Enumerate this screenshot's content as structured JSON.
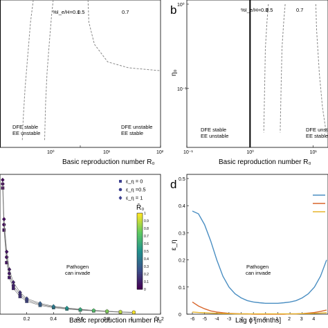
{
  "chart_data": [
    {
      "panel_label": "",
      "type": "line",
      "xscale": "log",
      "xlim": [
        1,
        100
      ],
      "x_tick_labels": [
        "10⁰",
        "10¹",
        "10²"
      ],
      "xlabel": "Basic reproduction number R₀",
      "threshold_line": {
        "x": 1
      },
      "contours": [
        {
          "label": "%I_e/H=0.1",
          "points": [
            [
              2.6,
              1.0
            ],
            [
              2.4,
              0.85
            ],
            [
              2.2,
              0.6
            ],
            [
              2.05,
              0.4
            ],
            [
              1.95,
              0.2
            ],
            [
              1.9,
              0.05
            ]
          ]
        },
        {
          "label": "0.5",
          "points": [
            [
              4.6,
              1.0
            ],
            [
              4.4,
              0.9
            ],
            [
              4.1,
              0.7
            ],
            [
              3.85,
              0.5
            ],
            [
              3.7,
              0.3
            ],
            [
              3.6,
              0.05
            ]
          ]
        },
        {
          "label": "0.7",
          "points": [
            [
              12.5,
              1.0
            ],
            [
              12.8,
              0.85
            ],
            [
              15,
              0.7
            ],
            [
              22,
              0.58
            ],
            [
              40,
              0.54
            ],
            [
              100,
              0.52
            ]
          ]
        }
      ],
      "region_labels": [
        {
          "lines": [
            "DFE stable",
            "EE unstable"
          ]
        },
        {
          "lines": [
            "DFE unstable",
            "EE stable"
          ]
        }
      ]
    },
    {
      "panel_label": "b",
      "type": "line",
      "xscale": "log",
      "yscale": "log",
      "xlim": [
        0.1,
        100
      ],
      "ylim": [
        0.02,
        1
      ],
      "x_tick_labels": [
        "10⁻¹",
        "10⁰",
        "10¹"
      ],
      "y_tick_labels": [
        "10⁰",
        "10⁻¹"
      ],
      "xlabel": "Basic reproduction number R₀",
      "ylabel": "η₀",
      "threshold_line": {
        "x": 1
      },
      "contours": [
        {
          "label": "%I_e/H=0.3",
          "points": [
            [
              1.95,
              1.0
            ],
            [
              1.85,
              0.6
            ],
            [
              1.75,
              0.3
            ],
            [
              1.7,
              0.1
            ],
            [
              1.65,
              0.03
            ]
          ]
        },
        {
          "label": "0.5",
          "points": [
            [
              3.6,
              1.0
            ],
            [
              3.4,
              0.6
            ],
            [
              3.2,
              0.3
            ],
            [
              3.1,
              0.1
            ],
            [
              3.0,
              0.03
            ]
          ]
        },
        {
          "label": "0.7",
          "points": [
            [
              11,
              1.0
            ],
            [
              11.3,
              0.5
            ],
            [
              12.5,
              0.15
            ],
            [
              14,
              0.06
            ],
            [
              16,
              0.03
            ]
          ]
        }
      ],
      "region_labels": [
        {
          "lines": [
            "DFE stable",
            "EE unstable"
          ]
        },
        {
          "lines": [
            "DFE unstable",
            "EE stable"
          ]
        }
      ]
    },
    {
      "panel_label": "",
      "type": "scatter",
      "xlim": [
        0,
        1.2
      ],
      "x_tick_labels": [
        "0.2",
        "0.4",
        "0.6",
        "0.8",
        "1",
        "1.2"
      ],
      "xlabel": "Basic reproduction number R̄₀",
      "legend": [
        {
          "label": "ε_η = 0",
          "marker": "square"
        },
        {
          "label": "ε_η =0.5",
          "marker": "circle"
        },
        {
          "label": "ε_η = 1",
          "marker": "diamond"
        }
      ],
      "colorbar": {
        "label": "R̄₀",
        "range": [
          0,
          1
        ],
        "tick_labels": [
          "1",
          "0.9",
          "0.8",
          "0.7",
          "0.6",
          "0.5",
          "0.4",
          "0.3",
          "0.2",
          "0.1",
          "0"
        ]
      },
      "annotation": [
        "Pathogen",
        "can invade"
      ],
      "x": [
        0.02,
        0.03,
        0.05,
        0.07,
        0.1,
        0.15,
        0.2,
        0.3,
        0.4,
        0.5,
        0.6,
        0.7,
        0.8,
        0.9,
        1.0
      ],
      "series": [
        {
          "name": "ε_η = 0",
          "values": [
            0.93,
            0.62,
            0.38,
            0.27,
            0.19,
            0.13,
            0.095,
            0.065,
            0.048,
            0.038,
            0.03,
            0.024,
            0.019,
            0.015,
            0.012
          ]
        },
        {
          "name": "ε_η =0.5",
          "values": [
            0.96,
            0.66,
            0.42,
            0.3,
            0.21,
            0.145,
            0.105,
            0.072,
            0.053,
            0.042,
            0.033,
            0.026,
            0.021,
            0.016,
            0.013
          ]
        },
        {
          "name": "ε_η = 1",
          "values": [
            0.99,
            0.7,
            0.46,
            0.33,
            0.235,
            0.16,
            0.115,
            0.08,
            0.058,
            0.046,
            0.036,
            0.028,
            0.022,
            0.017,
            0.014
          ]
        }
      ]
    },
    {
      "panel_label": "d",
      "type": "line",
      "xlim": [
        -6,
        5
      ],
      "ylim": [
        0,
        0.5
      ],
      "x_tick_labels": [
        "-6",
        "-5",
        "-4",
        "-3",
        "-2",
        "-1",
        "0",
        "1",
        "2",
        "3",
        "4"
      ],
      "y_tick_labels": [
        "0",
        "0.1",
        "0.2",
        "0.3",
        "0.4",
        "0.5"
      ],
      "xlabel": "Lag ϕ [months]",
      "ylabel": "ε_η",
      "annotation": [
        "Pathogen",
        "can invade"
      ],
      "x": [
        -6,
        -5.5,
        -5,
        -4.5,
        -4,
        -3.5,
        -3,
        -2.5,
        -2,
        -1.5,
        -1,
        -0.5,
        0,
        0.5,
        1,
        1.5,
        2,
        2.5,
        3,
        3.5,
        4,
        4.5,
        5
      ],
      "series": [
        {
          "color": "#4a8ec2",
          "values": [
            0.38,
            0.37,
            0.33,
            0.27,
            0.2,
            0.14,
            0.1,
            0.075,
            0.06,
            0.05,
            0.045,
            0.042,
            0.04,
            0.04,
            0.04,
            0.042,
            0.045,
            0.05,
            0.06,
            0.075,
            0.1,
            0.14,
            0.2
          ]
        },
        {
          "color": "#d8652a",
          "values": [
            0.045,
            0.03,
            0.02,
            0.012,
            0.008,
            0.005,
            0.003,
            0.002,
            0.001,
            0.001,
            0.0,
            0.0,
            0.0,
            0.0,
            0.0,
            0.0,
            0.001,
            0.001,
            0.002,
            0.004,
            0.006,
            0.01,
            0.015
          ]
        },
        {
          "color": "#e5b32a",
          "values": [
            0.008,
            0.006,
            0.005,
            0.004,
            0.003,
            0.002,
            0.002,
            0.001,
            0.001,
            0.001,
            0.001,
            0.001,
            0.001,
            0.001,
            0.001,
            0.001,
            0.001,
            0.001,
            0.002,
            0.002,
            0.003,
            0.004,
            0.005
          ]
        }
      ]
    }
  ]
}
